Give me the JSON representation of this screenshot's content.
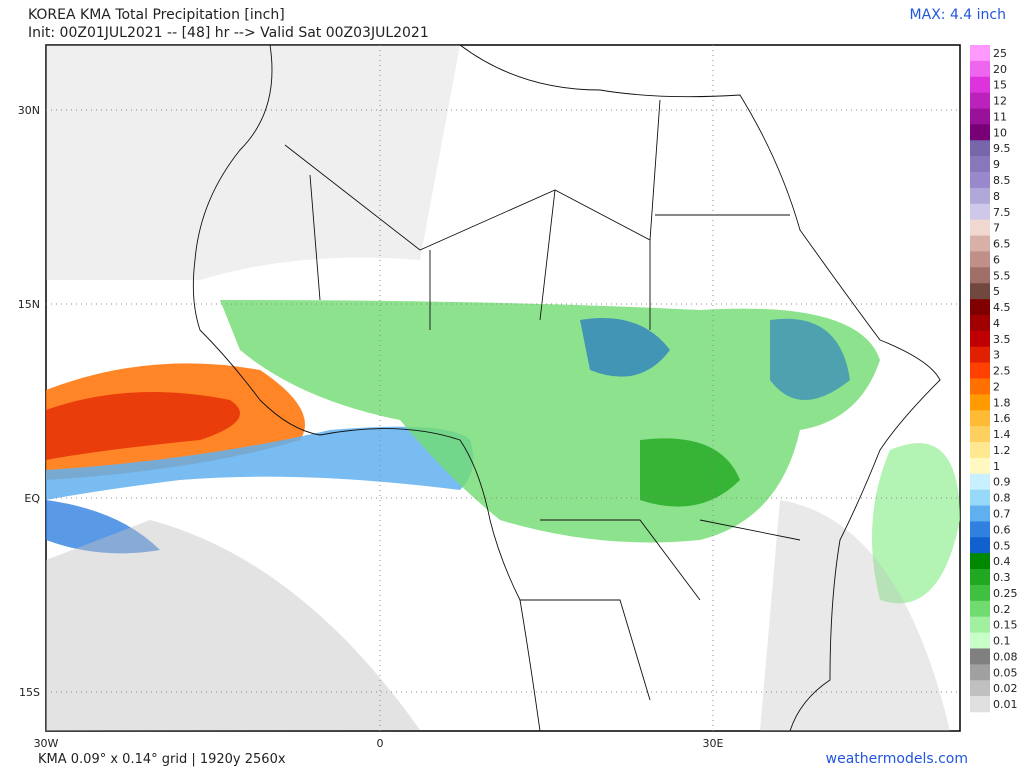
{
  "header": {
    "title": "KOREA KMA Total Precipitation [inch]",
    "subtitle": "Init: 00Z01JUL2021 -- [48] hr --> Valid Sat 00Z03JUL2021",
    "max": "MAX: 4.4 inch"
  },
  "map": {
    "lat_labels": [
      "30N",
      "15N",
      "EQ",
      "15S"
    ],
    "lon_labels": [
      "30W",
      "0",
      "30E"
    ]
  },
  "legend": [
    {
      "label": "25",
      "color": "#ff99ff"
    },
    {
      "label": "20",
      "color": "#ee66ee"
    },
    {
      "label": "15",
      "color": "#dd33dd"
    },
    {
      "label": "12",
      "color": "#bb22bb"
    },
    {
      "label": "11",
      "color": "#991199"
    },
    {
      "label": "10",
      "color": "#770077"
    },
    {
      "label": "9.5",
      "color": "#7766aa"
    },
    {
      "label": "9",
      "color": "#8877bb"
    },
    {
      "label": "8.5",
      "color": "#9988cc"
    },
    {
      "label": "8",
      "color": "#b0a8d8"
    },
    {
      "label": "7.5",
      "color": "#d0c8e8"
    },
    {
      "label": "7",
      "color": "#f0d8d0"
    },
    {
      "label": "6.5",
      "color": "#d8b0a8"
    },
    {
      "label": "6",
      "color": "#c09088"
    },
    {
      "label": "5.5",
      "color": "#a07068"
    },
    {
      "label": "5",
      "color": "#704840"
    },
    {
      "label": "4.5",
      "color": "#800000"
    },
    {
      "label": "4",
      "color": "#a00000"
    },
    {
      "label": "3.5",
      "color": "#c00000"
    },
    {
      "label": "3",
      "color": "#e02000"
    },
    {
      "label": "2.5",
      "color": "#ff4000"
    },
    {
      "label": "2",
      "color": "#ff7000"
    },
    {
      "label": "1.8",
      "color": "#ff9a00"
    },
    {
      "label": "1.6",
      "color": "#ffbb33"
    },
    {
      "label": "1.4",
      "color": "#ffd060"
    },
    {
      "label": "1.2",
      "color": "#ffe890"
    },
    {
      "label": "1",
      "color": "#fff8c0"
    },
    {
      "label": "0.9",
      "color": "#c8f0ff"
    },
    {
      "label": "0.8",
      "color": "#98d8f8"
    },
    {
      "label": "0.7",
      "color": "#60b0f0"
    },
    {
      "label": "0.6",
      "color": "#3080e0"
    },
    {
      "label": "0.5",
      "color": "#1060d0"
    },
    {
      "label": "0.4",
      "color": "#008800"
    },
    {
      "label": "0.3",
      "color": "#20a820"
    },
    {
      "label": "0.25",
      "color": "#40c040"
    },
    {
      "label": "0.2",
      "color": "#70dc70"
    },
    {
      "label": "0.15",
      "color": "#a0f0a0"
    },
    {
      "label": "0.1",
      "color": "#c8ffc8"
    },
    {
      "label": "0.08",
      "color": "#808080"
    },
    {
      "label": "0.05",
      "color": "#a0a0a0"
    },
    {
      "label": "0.02",
      "color": "#c0c0c0"
    },
    {
      "label": "0.01",
      "color": "#e0e0e0"
    }
  ],
  "footer": {
    "grid": "KMA 0.09° x 0.14° grid | 1920y 2560x",
    "site": "weathermodels.com"
  }
}
